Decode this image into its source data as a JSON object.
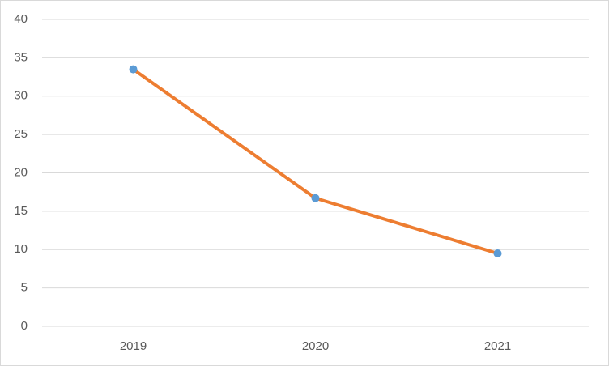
{
  "chart_data": {
    "type": "line",
    "categories": [
      "2019",
      "2020",
      "2021"
    ],
    "values": [
      33.5,
      16.7,
      9.5
    ],
    "color": "#ed7d31",
    "marker_color": "#5b9bd5",
    "ylim": [
      0,
      40
    ],
    "yticks": [
      0,
      5,
      10,
      15,
      20,
      25,
      30,
      35,
      40
    ],
    "grid": true
  }
}
